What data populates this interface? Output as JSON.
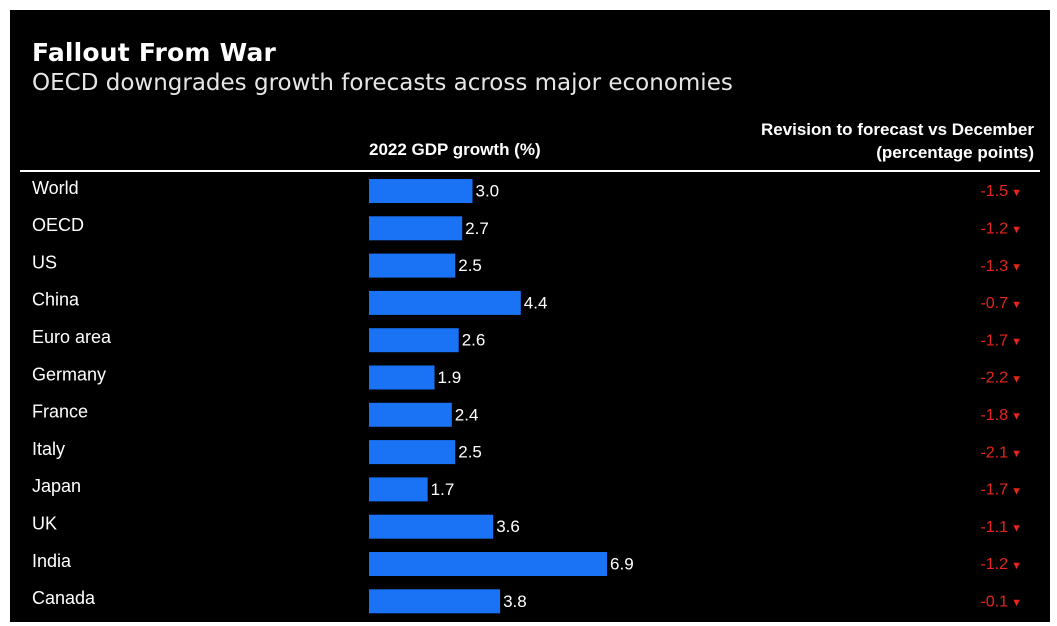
{
  "title": "Fallout From War",
  "subtitle": "OECD downgrades growth forecasts across major economies",
  "columns": {
    "gdp_header": "2022 GDP growth (%)",
    "revision_header_line1": "Revision to forecast vs December",
    "revision_header_line2": "(percentage points)"
  },
  "colors": {
    "bar": "#1a73f5",
    "revision": "#e8241b",
    "background": "#000000"
  },
  "chart_data": {
    "type": "bar",
    "orientation": "horizontal",
    "categories": [
      "World",
      "OECD",
      "US",
      "China",
      "Euro area",
      "Germany",
      "France",
      "Italy",
      "Japan",
      "UK",
      "India",
      "Canada"
    ],
    "series": [
      {
        "name": "2022 GDP growth (%)",
        "values": [
          3.0,
          2.7,
          2.5,
          4.4,
          2.6,
          1.9,
          2.4,
          2.5,
          1.7,
          3.6,
          6.9,
          3.8
        ]
      },
      {
        "name": "Revision to forecast vs December (percentage points)",
        "values": [
          -1.5,
          -1.2,
          -1.3,
          -0.7,
          -1.7,
          -2.2,
          -1.8,
          -2.1,
          -1.7,
          -1.1,
          -1.2,
          -0.1
        ]
      }
    ],
    "value_labels": [
      "3.0",
      "2.7",
      "2.5",
      "4.4",
      "2.6",
      "1.9",
      "2.4",
      "2.5",
      "1.7",
      "3.6",
      "6.9",
      "3.8"
    ],
    "revision_labels": [
      "-1.5",
      "-1.2",
      "-1.3",
      "-0.7",
      "-1.7",
      "-2.2",
      "-1.8",
      "-2.1",
      "-1.7",
      "-1.1",
      "-1.2",
      "-0.1"
    ],
    "revision_marker": "▼",
    "xlim": [
      0,
      7
    ],
    "grid": false,
    "legend": "none"
  }
}
